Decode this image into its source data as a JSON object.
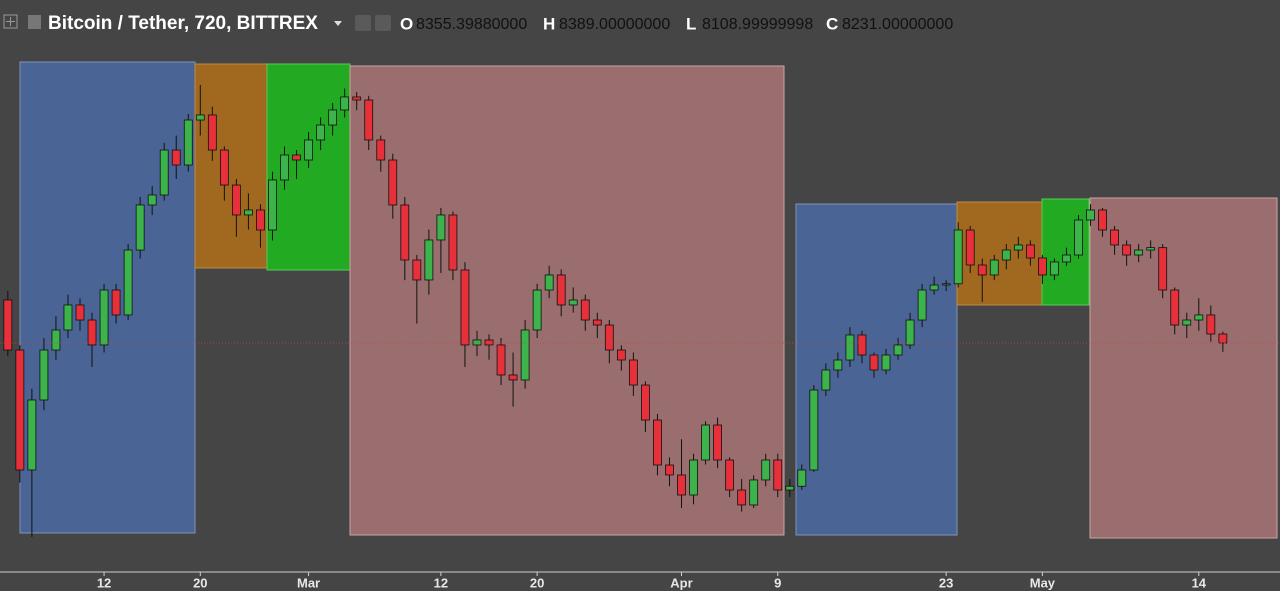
{
  "chart_data": {
    "type": "candlestick",
    "title": "Bitcoin / Tether, 720, BITTREX",
    "legend": [
      {
        "label": "O",
        "value": "8355.39880000"
      },
      {
        "label": "H",
        "value": "8389.00000000"
      },
      {
        "label": "L",
        "value": "8108.99999998"
      },
      {
        "label": "C",
        "value": "8231.00000000"
      }
    ],
    "x": [
      35,
      36,
      37,
      38,
      39,
      40,
      41,
      42,
      43,
      44,
      45,
      46,
      47,
      48,
      49,
      50,
      51,
      52,
      53,
      54,
      55,
      56,
      57,
      58,
      59,
      60,
      61,
      62,
      63,
      64,
      65,
      66,
      67,
      68,
      69,
      70,
      71,
      72,
      73,
      74,
      75,
      76,
      77,
      78,
      79,
      80,
      81,
      82,
      83,
      84,
      85,
      86,
      87,
      88,
      89,
      90,
      91,
      92,
      93,
      94,
      95,
      96,
      97,
      98,
      99,
      100,
      101,
      102,
      103,
      104,
      105,
      106,
      107,
      108,
      109,
      110,
      111,
      112,
      113,
      114,
      115,
      116,
      117,
      118,
      119,
      120,
      121,
      122,
      123,
      124,
      125,
      126,
      127,
      128,
      129,
      130,
      131,
      132,
      133,
      134,
      135,
      136
    ],
    "open": [
      8826,
      8134,
      6475,
      7443,
      8134,
      8411,
      8757,
      8549,
      8204,
      8964,
      8619,
      9517,
      10140,
      10278,
      10900,
      10693,
      11315,
      11385,
      10900,
      10416,
      10002,
      10071,
      9794,
      10486,
      10831,
      10762,
      11039,
      11246,
      11454,
      11634,
      11592,
      11039,
      10762,
      10140,
      9379,
      9103,
      9656,
      10002,
      9241,
      8204,
      8273,
      8204,
      7789,
      7720,
      8411,
      8964,
      9172,
      8757,
      8826,
      8549,
      8480,
      8134,
      7996,
      7650,
      7166,
      6544,
      6406,
      6129,
      6613,
      7097,
      6613,
      6198,
      5991,
      6337,
      6613,
      6198,
      6250,
      6475,
      7581,
      7858,
      7996,
      8342,
      8065,
      7858,
      8065,
      8204,
      8549,
      8964,
      9033,
      9050,
      9794,
      9310,
      9172,
      9379,
      9517,
      9587,
      9407,
      9172,
      9352,
      9448,
      9932,
      10071,
      9794,
      9587,
      9448,
      9517,
      9550,
      8964,
      8480,
      8549,
      8619,
      8355.3988
    ],
    "high": [
      8950,
      8200,
      7600,
      8300,
      8600,
      8900,
      8850,
      8650,
      9050,
      9050,
      9600,
      10250,
      10400,
      11000,
      11100,
      11400,
      11800,
      11500,
      10950,
      10500,
      10300,
      10150,
      10600,
      10950,
      10900,
      11150,
      11350,
      11550,
      11750,
      11700,
      11650,
      11100,
      10850,
      10250,
      9450,
      9800,
      10100,
      10050,
      9350,
      8400,
      8350,
      8300,
      8100,
      8550,
      9050,
      9300,
      9250,
      9000,
      8900,
      8650,
      8550,
      8200,
      8100,
      7700,
      7250,
      6650,
      6900,
      6700,
      7150,
      7200,
      6650,
      6350,
      6400,
      6700,
      6700,
      6350,
      6550,
      7650,
      7950,
      8100,
      8450,
      8400,
      8100,
      8150,
      8300,
      8650,
      9050,
      9150,
      9100,
      9900,
      9850,
      9400,
      9450,
      9600,
      9700,
      9650,
      9450,
      9400,
      9550,
      10000,
      10150,
      10100,
      9850,
      9650,
      9600,
      9650,
      9600,
      9000,
      8650,
      8850,
      8750,
      8389
    ],
    "low": [
      8050,
      6300,
      5550,
      7300,
      8000,
      8300,
      8400,
      7900,
      8100,
      8500,
      8550,
      9400,
      10000,
      10200,
      10500,
      10600,
      11100,
      10750,
      10200,
      9700,
      9800,
      9550,
      9650,
      10350,
      10500,
      10650,
      10900,
      11100,
      11350,
      11450,
      10900,
      10600,
      9950,
      9100,
      8500,
      8900,
      9200,
      9100,
      7900,
      8050,
      8000,
      7650,
      7350,
      7600,
      8300,
      8850,
      8600,
      8650,
      8400,
      8300,
      7950,
      7850,
      7500,
      7000,
      6400,
      6250,
      5950,
      6000,
      6550,
      6500,
      6100,
      5900,
      5950,
      6250,
      6100,
      6100,
      6200,
      6450,
      7500,
      7750,
      7900,
      7950,
      7750,
      7800,
      8000,
      8150,
      8450,
      8900,
      8950,
      9000,
      9200,
      8800,
      9100,
      9250,
      9400,
      9300,
      9050,
      9100,
      9300,
      9400,
      9850,
      9700,
      9450,
      9300,
      9350,
      9400,
      8850,
      8350,
      8300,
      8400,
      8250,
      8108.99999998
    ],
    "close": [
      8134,
      6475,
      7443,
      8134,
      8411,
      8757,
      8549,
      8204,
      8964,
      8619,
      9517,
      10140,
      10278,
      10900,
      10693,
      11315,
      11385,
      10900,
      10416,
      10002,
      10071,
      9794,
      10486,
      10831,
      10762,
      11039,
      11246,
      11454,
      11634,
      11592,
      11039,
      10762,
      10140,
      9379,
      9103,
      9656,
      10002,
      9241,
      8204,
      8273,
      8204,
      7789,
      7720,
      8411,
      8964,
      9172,
      8757,
      8826,
      8549,
      8480,
      8134,
      7996,
      7650,
      7166,
      6544,
      6406,
      6129,
      6613,
      7097,
      6613,
      6198,
      5991,
      6337,
      6613,
      6198,
      6250,
      6475,
      7581,
      7858,
      7996,
      8342,
      8065,
      7858,
      8065,
      8204,
      8549,
      8964,
      9033,
      9050,
      9794,
      9310,
      9172,
      9379,
      9517,
      9587,
      9407,
      9172,
      9352,
      9448,
      9932,
      10071,
      9794,
      9587,
      9448,
      9517,
      9550,
      8964,
      8480,
      8549,
      8619,
      8355.3988,
      8231
    ],
    "up_color": "#3cb44b",
    "down_color": "#e8303a",
    "xlim": [
      34.35,
      140.75
    ],
    "xticks": [
      {
        "value": 43,
        "label": "12"
      },
      {
        "value": 51,
        "label": "20"
      },
      {
        "value": 60,
        "label": "Mar"
      },
      {
        "value": 71,
        "label": "12"
      },
      {
        "value": 79,
        "label": "20"
      },
      {
        "value": 91,
        "label": "Apr"
      },
      {
        "value": 99,
        "label": "9"
      },
      {
        "value": 113,
        "label": "23"
      },
      {
        "value": 121,
        "label": "May"
      },
      {
        "value": 134,
        "label": "14"
      }
    ],
    "ylim": [
      5064,
      12975
    ]
  }
}
